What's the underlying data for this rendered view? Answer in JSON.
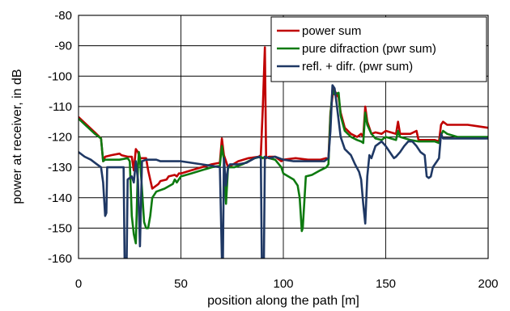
{
  "chart_data": {
    "type": "line",
    "title": "",
    "xlabel": "position along the path [m]",
    "ylabel": "power at receiver, in dB",
    "xlim": [
      0,
      200
    ],
    "ylim": [
      -160,
      -80
    ],
    "xticks": [
      0,
      50,
      100,
      150,
      200
    ],
    "yticks": [
      -80,
      -90,
      -100,
      -110,
      -120,
      -130,
      -140,
      -150,
      -160
    ],
    "grid": true,
    "legend_position": "top-right",
    "series": [
      {
        "name": "power sum",
        "color": "#c00000",
        "points": [
          [
            0,
            -113.5
          ],
          [
            4,
            -116
          ],
          [
            8,
            -118.5
          ],
          [
            11,
            -120.5
          ],
          [
            12,
            -128
          ],
          [
            13,
            -126.5
          ],
          [
            16,
            -126
          ],
          [
            20,
            -125.5
          ],
          [
            21,
            -126
          ],
          [
            24,
            -126.5
          ],
          [
            26,
            -126.5
          ],
          [
            27,
            -131
          ],
          [
            28,
            -124
          ],
          [
            29,
            -125
          ],
          [
            30,
            -127
          ],
          [
            33,
            -127
          ],
          [
            34,
            -131
          ],
          [
            36,
            -137
          ],
          [
            39,
            -135.5
          ],
          [
            40,
            -134.5
          ],
          [
            43,
            -134
          ],
          [
            44,
            -133
          ],
          [
            47,
            -132.5
          ],
          [
            48,
            -133
          ],
          [
            49,
            -132
          ],
          [
            50,
            -132
          ],
          [
            55,
            -131
          ],
          [
            60,
            -130
          ],
          [
            65,
            -129
          ],
          [
            69,
            -128.5
          ],
          [
            70,
            -120.5
          ],
          [
            71,
            -126
          ],
          [
            73,
            -130
          ],
          [
            78,
            -128
          ],
          [
            83,
            -127
          ],
          [
            88,
            -126.5
          ],
          [
            89,
            -126
          ],
          [
            90,
            -110
          ],
          [
            91,
            -90.5
          ],
          [
            91.6,
            -127
          ],
          [
            93,
            -126.5
          ],
          [
            96,
            -126.5
          ],
          [
            99,
            -128
          ],
          [
            100,
            -127.5
          ],
          [
            106,
            -127
          ],
          [
            112,
            -127.5
          ],
          [
            118,
            -127.5
          ],
          [
            121,
            -127
          ],
          [
            122,
            -127.5
          ],
          [
            123,
            -112
          ],
          [
            124.5,
            -104
          ],
          [
            126,
            -106
          ],
          [
            127,
            -107
          ],
          [
            128,
            -112
          ],
          [
            130,
            -117
          ],
          [
            133,
            -119
          ],
          [
            136,
            -120
          ],
          [
            138,
            -119
          ],
          [
            139,
            -120
          ],
          [
            140,
            -110
          ],
          [
            141,
            -115
          ],
          [
            143,
            -119
          ],
          [
            145,
            -118.5
          ],
          [
            148,
            -119
          ],
          [
            150,
            -118
          ],
          [
            155,
            -119
          ],
          [
            156,
            -115
          ],
          [
            157,
            -119
          ],
          [
            162,
            -119
          ],
          [
            165,
            -118
          ],
          [
            166,
            -121
          ],
          [
            170,
            -121
          ],
          [
            174,
            -121
          ],
          [
            176,
            -121.5
          ],
          [
            177,
            -116
          ],
          [
            178,
            -115
          ],
          [
            180,
            -116
          ],
          [
            185,
            -116
          ],
          [
            190,
            -116
          ],
          [
            195,
            -116.5
          ],
          [
            200,
            -117
          ]
        ]
      },
      {
        "name": "pure difraction (pwr sum)",
        "color": "#0e7a10",
        "points": [
          [
            0,
            -114
          ],
          [
            4,
            -116.5
          ],
          [
            8,
            -119
          ],
          [
            11,
            -120.5
          ],
          [
            12,
            -128
          ],
          [
            13,
            -127.5
          ],
          [
            16,
            -127.5
          ],
          [
            20,
            -127.5
          ],
          [
            24,
            -127
          ],
          [
            25,
            -128
          ],
          [
            26,
            -146
          ],
          [
            27,
            -152
          ],
          [
            28,
            -155
          ],
          [
            29,
            -130
          ],
          [
            29.5,
            -125
          ],
          [
            30,
            -127
          ],
          [
            32,
            -148
          ],
          [
            33,
            -150
          ],
          [
            34,
            -150
          ],
          [
            35,
            -146
          ],
          [
            36,
            -140
          ],
          [
            38,
            -138
          ],
          [
            42,
            -137
          ],
          [
            46,
            -135.5
          ],
          [
            47,
            -134
          ],
          [
            48,
            -135
          ],
          [
            50,
            -133
          ],
          [
            55,
            -132
          ],
          [
            60,
            -131
          ],
          [
            65,
            -130
          ],
          [
            69,
            -129.5
          ],
          [
            70,
            -123
          ],
          [
            71,
            -127.5
          ],
          [
            72,
            -142
          ],
          [
            73,
            -130
          ],
          [
            76,
            -130
          ],
          [
            80,
            -129
          ],
          [
            86,
            -127
          ],
          [
            89,
            -126.5
          ],
          [
            90,
            -127
          ],
          [
            91,
            -126.5
          ],
          [
            93,
            -127
          ],
          [
            96,
            -127.5
          ],
          [
            99,
            -130
          ],
          [
            100,
            -132
          ],
          [
            105,
            -134
          ],
          [
            107,
            -136
          ],
          [
            108,
            -140
          ],
          [
            109,
            -151
          ],
          [
            109.5,
            -150
          ],
          [
            111,
            -133
          ],
          [
            114,
            -132.5
          ],
          [
            118,
            -131
          ],
          [
            121,
            -130
          ],
          [
            122,
            -129
          ],
          [
            123,
            -113
          ],
          [
            124,
            -104.5
          ],
          [
            125,
            -106
          ],
          [
            127,
            -105.5
          ],
          [
            128,
            -113
          ],
          [
            130,
            -118
          ],
          [
            133,
            -120
          ],
          [
            136,
            -121
          ],
          [
            138,
            -121.5
          ],
          [
            139,
            -122
          ],
          [
            140,
            -112
          ],
          [
            141,
            -116
          ],
          [
            143,
            -119
          ],
          [
            145,
            -120.5
          ],
          [
            148,
            -121
          ],
          [
            150,
            -120
          ],
          [
            155,
            -121
          ],
          [
            156,
            -118
          ],
          [
            157,
            -120
          ],
          [
            162,
            -121
          ],
          [
            166,
            -121.5
          ],
          [
            170,
            -121.5
          ],
          [
            174,
            -121.5
          ],
          [
            176,
            -122
          ],
          [
            177,
            -119.5
          ],
          [
            178,
            -118
          ],
          [
            180,
            -119
          ],
          [
            185,
            -120
          ],
          [
            190,
            -120
          ],
          [
            195,
            -120
          ],
          [
            200,
            -120
          ]
        ]
      },
      {
        "name": "refl. + difr. (pwr sum)",
        "color": "#1f3864",
        "points": [
          [
            0,
            -125
          ],
          [
            3,
            -126.5
          ],
          [
            6,
            -127.5
          ],
          [
            9,
            -129
          ],
          [
            11,
            -130
          ],
          [
            12,
            -135
          ],
          [
            13,
            -146
          ],
          [
            13.6,
            -145
          ],
          [
            14,
            -130
          ],
          [
            16,
            -130
          ],
          [
            20,
            -130
          ],
          [
            22,
            -130
          ],
          [
            22.5,
            -160
          ],
          [
            23.5,
            -160
          ],
          [
            24,
            -134
          ],
          [
            26,
            -133
          ],
          [
            27,
            -135
          ],
          [
            28,
            -128
          ],
          [
            29,
            -134
          ],
          [
            30,
            -156
          ],
          [
            31,
            -128
          ],
          [
            33,
            -127.5
          ],
          [
            35,
            -127.5
          ],
          [
            38,
            -127.5
          ],
          [
            40,
            -128
          ],
          [
            44,
            -128
          ],
          [
            48,
            -128
          ],
          [
            50,
            -128
          ],
          [
            55,
            -128.5
          ],
          [
            60,
            -129
          ],
          [
            65,
            -129.5
          ],
          [
            69,
            -130
          ],
          [
            70,
            -160
          ],
          [
            70.5,
            -160
          ],
          [
            71,
            -127
          ],
          [
            72,
            -136
          ],
          [
            73,
            -130
          ],
          [
            74,
            -129
          ],
          [
            78,
            -129
          ],
          [
            82,
            -128.5
          ],
          [
            86,
            -127
          ],
          [
            88,
            -126.5
          ],
          [
            89,
            -127
          ],
          [
            89.5,
            -160
          ],
          [
            90.5,
            -160
          ],
          [
            91,
            -126.5
          ],
          [
            93,
            -127
          ],
          [
            96,
            -126.5
          ],
          [
            98,
            -127
          ],
          [
            100,
            -127.5
          ],
          [
            105,
            -128
          ],
          [
            110,
            -128
          ],
          [
            115,
            -128
          ],
          [
            120,
            -128
          ],
          [
            121,
            -127.5
          ],
          [
            122,
            -127
          ],
          [
            123,
            -118
          ],
          [
            124,
            -103
          ],
          [
            125,
            -104
          ],
          [
            126,
            -109
          ],
          [
            128,
            -120
          ],
          [
            130,
            -124
          ],
          [
            133,
            -126
          ],
          [
            135,
            -129
          ],
          [
            137,
            -131.5
          ],
          [
            138,
            -134
          ],
          [
            139,
            -142
          ],
          [
            140,
            -148.5
          ],
          [
            141,
            -133
          ],
          [
            142,
            -126
          ],
          [
            143,
            -127
          ],
          [
            145,
            -123
          ],
          [
            148,
            -121.5
          ],
          [
            150,
            -123
          ],
          [
            153,
            -126
          ],
          [
            154,
            -127
          ],
          [
            155,
            -126.5
          ],
          [
            157,
            -125
          ],
          [
            159,
            -123
          ],
          [
            161,
            -121.5
          ],
          [
            163,
            -121.5
          ],
          [
            165,
            -123
          ],
          [
            167,
            -125
          ],
          [
            169,
            -126
          ],
          [
            170,
            -133
          ],
          [
            171,
            -133.5
          ],
          [
            172,
            -133
          ],
          [
            173,
            -130
          ],
          [
            174,
            -129
          ],
          [
            175,
            -128
          ],
          [
            176,
            -127
          ],
          [
            177,
            -119
          ],
          [
            178,
            -120.5
          ],
          [
            180,
            -120.5
          ],
          [
            185,
            -120.5
          ],
          [
            190,
            -120.5
          ],
          [
            195,
            -120.5
          ],
          [
            200,
            -120.5
          ]
        ]
      }
    ]
  }
}
